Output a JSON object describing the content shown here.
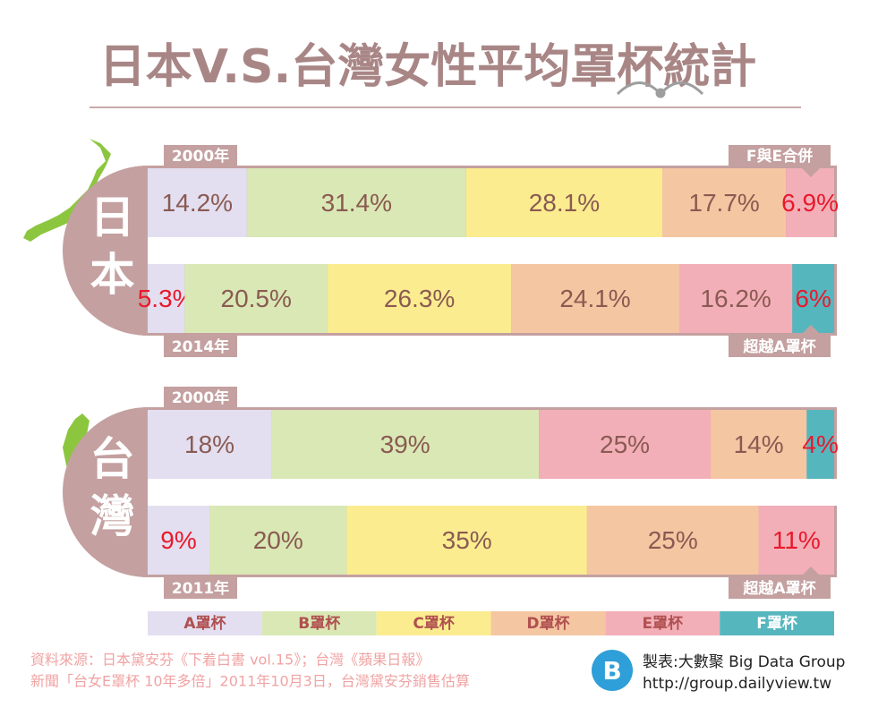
{
  "chart_data": {
    "type": "bar",
    "title": "日本V.S.台灣女性平均罩杯統計",
    "legend": {
      "categories": [
        "A罩杯",
        "B罩杯",
        "C罩杯",
        "D罩杯",
        "E罩杯",
        "F罩杯"
      ],
      "colors": [
        "#e3dff0",
        "#d9e8b4",
        "#fbec90",
        "#f5c6a2",
        "#f3afb8",
        "#56b6be"
      ]
    },
    "groups": [
      {
        "name": "日本",
        "rows": [
          {
            "label": "2000年",
            "note": "F與E合併",
            "values": [
              14.2,
              31.4,
              28.1,
              17.7,
              6.9
            ],
            "value_labels": [
              "14.2%",
              "31.4%",
              "28.1%",
              "17.7%",
              "6.9%"
            ],
            "colors": [
              "#e3dff0",
              "#d9e8b4",
              "#fbec90",
              "#f5c6a2",
              "#f3afb8"
            ],
            "label_colors": [
              "#8a5a52",
              "#8a5a52",
              "#8a5a52",
              "#8a5a52",
              "#e8192c"
            ]
          },
          {
            "label": "2014年",
            "note": "超越A罩杯",
            "values": [
              5.3,
              20.5,
              26.3,
              24.1,
              16.2,
              6
            ],
            "value_labels": [
              "5.3%",
              "20.5%",
              "26.3%",
              "24.1%",
              "16.2%",
              "6%"
            ],
            "colors": [
              "#e3dff0",
              "#d9e8b4",
              "#fbec90",
              "#f5c6a2",
              "#f3afb8",
              "#56b6be"
            ],
            "label_colors": [
              "#e8192c",
              "#8a5a52",
              "#8a5a52",
              "#8a5a52",
              "#8a5a52",
              "#e8192c"
            ]
          }
        ]
      },
      {
        "name": "台灣",
        "rows": [
          {
            "label": "2000年",
            "values": [
              18,
              39,
              25,
              14,
              4
            ],
            "value_labels": [
              "18%",
              "39%",
              "25%",
              "14%",
              "4%"
            ],
            "colors": [
              "#e3dff0",
              "#d9e8b4",
              "#f3afb8",
              "#f5c6a2",
              "#56b6be"
            ],
            "label_colors": [
              "#8a5a52",
              "#8a5a52",
              "#8a5a52",
              "#8a5a52",
              "#e8192c"
            ]
          },
          {
            "label": "2011年",
            "note": "超越A罩杯",
            "values": [
              9,
              20,
              35,
              25,
              11
            ],
            "value_labels": [
              "9%",
              "20%",
              "35%",
              "25%",
              "11%"
            ],
            "colors": [
              "#e3dff0",
              "#d9e8b4",
              "#fbec90",
              "#f5c6a2",
              "#f3afb8"
            ],
            "label_colors": [
              "#e8192c",
              "#8a5a52",
              "#8a5a52",
              "#8a5a52",
              "#e8192c"
            ]
          }
        ]
      }
    ],
    "source": [
      "資料來源：日本黛安芬《下着白書 vol.15》；台灣《蘋果日報》",
      "新聞「台女E罩杯 10年多倍」2011年10月3日，台灣黛安芬銷售估算"
    ],
    "credit": [
      "製表:大數聚 Big Data Group",
      "http://group.dailyview.tw"
    ]
  }
}
